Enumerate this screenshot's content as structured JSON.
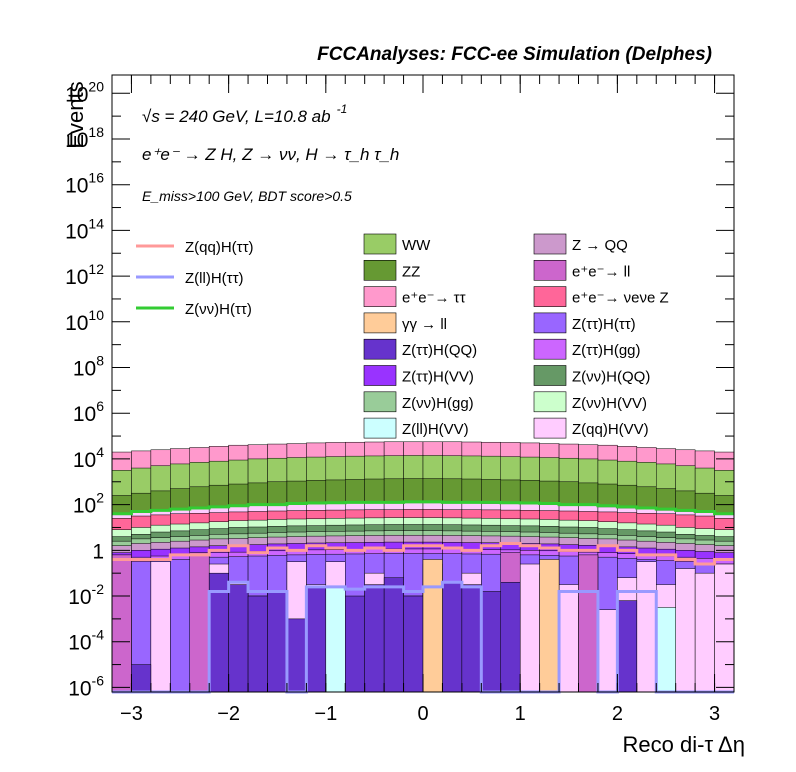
{
  "chart_data": {
    "type": "bar",
    "title": "FCCAnalyses: FCC-ee Simulation (Delphes)",
    "xlabel": "Reco di-τ Δη",
    "ylabel": "Events",
    "xlim": [
      -3.2,
      3.2
    ],
    "ylim_log10": [
      -6.2,
      20.8
    ],
    "log_scale_y": true,
    "n_bins": 32,
    "x_ticks": [
      "−3",
      "−2",
      "−1",
      "0",
      "1",
      "2",
      "3"
    ],
    "x_tick_values": [
      -3,
      -2,
      -1,
      0,
      1,
      2,
      3
    ],
    "y_ticks": [
      {
        "base": "10",
        "exp": "20",
        "v": 20
      },
      {
        "base": "10",
        "exp": "18",
        "v": 18
      },
      {
        "base": "10",
        "exp": "16",
        "v": 16
      },
      {
        "base": "10",
        "exp": "14",
        "v": 14
      },
      {
        "base": "10",
        "exp": "12",
        "v": 12
      },
      {
        "base": "10",
        "exp": "10",
        "v": 10
      },
      {
        "base": "10",
        "exp": "8",
        "v": 8
      },
      {
        "base": "10",
        "exp": "6",
        "v": 6
      },
      {
        "base": "10",
        "exp": "4",
        "v": 4
      },
      {
        "base": "10",
        "exp": "2",
        "v": 2
      },
      {
        "base": "1",
        "exp": "",
        "v": 0
      },
      {
        "base": "10",
        "exp": "-2",
        "v": -2
      },
      {
        "base": "10",
        "exp": "-4",
        "v": -4
      },
      {
        "base": "10",
        "exp": "-6",
        "v": -6
      }
    ],
    "annotations": {
      "line1": "√s = 240 GeV, L=10.8 ab",
      "line1_sup": "-1",
      "line2": "e⁺e⁻ → Z H, Z → νν, H → τ_h τ_h",
      "line3": "E_miss>100 GeV, BDT score>0.5"
    },
    "stack_layers_log10": [
      {
        "name": "e⁺e⁻→ ττ",
        "color": "#ff99cc",
        "values": [
          4.3,
          4.35,
          4.4,
          4.45,
          4.5,
          4.55,
          4.6,
          4.62,
          4.65,
          4.67,
          4.7,
          4.72,
          4.73,
          4.74,
          4.75,
          4.75,
          4.75,
          4.75,
          4.74,
          4.73,
          4.72,
          4.7,
          4.67,
          4.65,
          4.62,
          4.6,
          4.55,
          4.5,
          4.45,
          4.4,
          4.35,
          4.3
        ]
      },
      {
        "name": "WW",
        "color": "#99cc66",
        "values": [
          3.5,
          3.6,
          3.7,
          3.78,
          3.85,
          3.9,
          3.95,
          4.0,
          4.03,
          4.06,
          4.08,
          4.1,
          4.12,
          4.13,
          4.14,
          4.15,
          4.15,
          4.14,
          4.13,
          4.12,
          4.1,
          4.08,
          4.06,
          4.03,
          4.0,
          3.95,
          3.9,
          3.85,
          3.78,
          3.7,
          3.6,
          3.5
        ]
      },
      {
        "name": "ZZ",
        "color": "#669933",
        "values": [
          2.4,
          2.5,
          2.6,
          2.7,
          2.78,
          2.85,
          2.9,
          2.95,
          3.0,
          3.03,
          3.06,
          3.08,
          3.1,
          3.12,
          3.13,
          3.14,
          3.14,
          3.13,
          3.12,
          3.1,
          3.08,
          3.06,
          3.03,
          3.0,
          2.95,
          2.9,
          2.85,
          2.78,
          2.7,
          2.6,
          2.5,
          2.4
        ]
      },
      {
        "name": "Z(qq)H(VV)",
        "color": "#ffccff",
        "values": [
          1.6,
          1.7,
          1.75,
          1.8,
          1.85,
          1.9,
          1.95,
          1.98,
          2.0,
          2.02,
          2.04,
          2.05,
          2.06,
          2.07,
          2.08,
          2.08,
          2.08,
          2.07,
          2.06,
          2.05,
          2.04,
          2.02,
          2.0,
          1.98,
          1.95,
          1.9,
          1.85,
          1.8,
          1.75,
          1.7,
          1.65,
          1.6
        ]
      },
      {
        "name": "e⁺e⁻→ νeνe Z",
        "color": "#ff6699",
        "values": [
          1.4,
          1.5,
          1.55,
          1.6,
          1.62,
          1.65,
          1.68,
          1.7,
          1.72,
          1.74,
          1.75,
          1.76,
          1.77,
          1.78,
          1.78,
          1.79,
          1.79,
          1.78,
          1.78,
          1.77,
          1.76,
          1.75,
          1.74,
          1.72,
          1.7,
          1.68,
          1.65,
          1.62,
          1.6,
          1.55,
          1.5,
          1.4
        ]
      },
      {
        "name": "Z(νν)H(VV)",
        "color": "#ccffcc",
        "values": [
          0.9,
          1.0,
          1.1,
          1.15,
          1.2,
          1.25,
          1.3,
          1.32,
          1.35,
          1.37,
          1.38,
          1.4,
          1.41,
          1.42,
          1.43,
          1.43,
          1.43,
          1.42,
          1.41,
          1.4,
          1.38,
          1.37,
          1.35,
          1.32,
          1.3,
          1.25,
          1.2,
          1.15,
          1.1,
          1.0,
          0.95,
          0.9
        ]
      },
      {
        "name": "Z(νν)H(QQ)",
        "color": "#669966",
        "values": [
          0.6,
          0.7,
          0.8,
          0.85,
          0.9,
          0.95,
          1.0,
          1.02,
          1.05,
          1.07,
          1.08,
          1.1,
          1.11,
          1.12,
          1.13,
          1.13,
          1.13,
          1.12,
          1.11,
          1.1,
          1.08,
          1.07,
          1.05,
          1.02,
          1.0,
          0.95,
          0.9,
          0.85,
          0.8,
          0.7,
          0.65,
          0.6
        ]
      },
      {
        "name": "Z(νν)H(gg)",
        "color": "#99cc99",
        "values": [
          0.4,
          0.5,
          0.55,
          0.6,
          0.65,
          0.7,
          0.72,
          0.75,
          0.78,
          0.8,
          0.82,
          0.83,
          0.84,
          0.85,
          0.86,
          0.86,
          0.86,
          0.85,
          0.84,
          0.83,
          0.82,
          0.8,
          0.78,
          0.75,
          0.72,
          0.7,
          0.65,
          0.6,
          0.55,
          0.5,
          0.45,
          0.4
        ]
      },
      {
        "name": "Z → QQ",
        "color": "#cc99cc",
        "values": [
          0.2,
          0.3,
          0.35,
          0.4,
          0.45,
          0.5,
          0.52,
          0.55,
          0.58,
          0.6,
          0.62,
          0.63,
          0.64,
          0.65,
          0.66,
          0.66,
          0.66,
          0.65,
          0.64,
          0.63,
          0.62,
          0.6,
          0.58,
          0.55,
          0.52,
          0.5,
          0.45,
          0.4,
          0.35,
          0.3,
          0.25,
          0.2
        ]
      },
      {
        "name": "Z(ττ)H(VV)",
        "color": "#9933ff",
        "values": [
          -0.1,
          0.0,
          0.05,
          0.1,
          0.15,
          0.2,
          0.22,
          0.25,
          0.28,
          0.3,
          0.32,
          0.33,
          0.34,
          0.35,
          0.36,
          0.36,
          0.36,
          0.35,
          0.34,
          0.33,
          0.32,
          0.3,
          0.28,
          0.25,
          0.22,
          0.2,
          0.15,
          0.1,
          0.05,
          0.0,
          -0.05,
          -0.1
        ]
      },
      {
        "name": "Z(ττ)H(gg)",
        "color": "#cc66ff",
        "values": [
          -0.4,
          -0.3,
          -0.25,
          -0.2,
          -0.15,
          -0.1,
          -0.08,
          -0.05,
          -0.02,
          0.0,
          0.02,
          0.03,
          0.04,
          0.05,
          0.06,
          0.06,
          0.06,
          0.05,
          0.04,
          0.03,
          0.02,
          0.0,
          -0.02,
          -0.05,
          -0.08,
          -0.1,
          -0.15,
          -0.2,
          -0.25,
          -0.3,
          -0.35,
          -0.4
        ]
      },
      {
        "name": "Z(ττ)H(ττ)",
        "color": "#9966ff",
        "values": [
          -0.6,
          -0.5,
          -0.45,
          -0.4,
          -0.35,
          -0.3,
          -0.28,
          -0.25,
          -0.22,
          -0.2,
          -0.18,
          -0.17,
          -0.16,
          -0.15,
          -0.14,
          -0.14,
          -0.14,
          -0.15,
          -0.16,
          -0.17,
          -0.18,
          -0.2,
          -0.22,
          -0.25,
          -0.28,
          -0.3,
          -0.35,
          -0.4,
          -0.45,
          -0.5,
          -0.55,
          -0.6
        ]
      }
    ],
    "individual_bars_log10": [
      {
        "name": "Z(qq)H(VV)",
        "color": "#ffccff",
        "values": [
          -0.6,
          -6.2,
          -0.5,
          -6.2,
          -0.5,
          -0.6,
          -1.4,
          -2.0,
          -2.5,
          -0.5,
          -1.5,
          -0.5,
          -2.5,
          -1.0,
          -1.5,
          -2.0,
          -0.6,
          -1.8,
          -1.0,
          -2.5,
          -1.5,
          -0.6,
          -1.0,
          -1.5,
          -2.0,
          -2.6,
          -1.2,
          -0.5,
          -1.5,
          -0.8,
          -1.0,
          -0.6
        ]
      },
      {
        "name": "e⁺e⁻→ ll",
        "color": "#cc66cc",
        "values": [
          -0.2,
          -6.2,
          -6.2,
          -6.2,
          -0.1,
          -6.2,
          -6.2,
          -6.2,
          -6.2,
          -6.2,
          -6.2,
          -6.2,
          -6.2,
          -6.2,
          -6.2,
          -6.2,
          -6.2,
          -6.2,
          -6.2,
          -6.2,
          -0.1,
          -6.2,
          -6.2,
          -6.2,
          -0.2,
          -6.2,
          -6.2,
          -6.2,
          -6.2,
          -6.2,
          -6.2,
          -6.2
        ]
      },
      {
        "name": "Z(ττ)H(QQ)",
        "color": "#6633cc",
        "values": [
          -6.2,
          -5.0,
          -6.2,
          -6.2,
          -6.2,
          -1.0,
          -1.5,
          -2.0,
          -1.8,
          -3.0,
          -1.6,
          -1.8,
          -2.0,
          -1.5,
          -1.2,
          -2.0,
          -6.2,
          -1.4,
          -1.5,
          -1.8,
          -1.4,
          -6.2,
          -5.0,
          -6.2,
          -6.2,
          -6.2,
          -2.2,
          -6.2,
          -6.2,
          -6.2,
          -6.2,
          -6.2
        ]
      },
      {
        "name": "Z(ll)H(VV)",
        "color": "#ccffff",
        "values": [
          -6.2,
          -6.2,
          -6.2,
          -6.2,
          -6.2,
          -6.2,
          -6.2,
          -6.2,
          -6.2,
          -6.2,
          -6.2,
          -1.6,
          -6.2,
          -6.2,
          -6.2,
          -6.2,
          -6.2,
          -6.2,
          -6.2,
          -6.2,
          -6.2,
          -6.2,
          -6.2,
          -6.2,
          -6.2,
          -6.2,
          -6.2,
          -6.2,
          -2.5,
          -6.2,
          -6.2,
          -6.2
        ]
      },
      {
        "name": "γγ → ll",
        "color": "#ffcc99",
        "values": [
          -6.2,
          -6.2,
          -6.2,
          -6.2,
          -6.2,
          -6.2,
          -6.2,
          -6.2,
          -6.2,
          -6.2,
          -6.2,
          -6.2,
          -6.2,
          -6.2,
          -6.2,
          -6.2,
          -0.4,
          -6.2,
          -6.2,
          -6.2,
          -6.2,
          -6.2,
          -0.4,
          -6.2,
          -6.2,
          -6.2,
          -6.2,
          -6.2,
          -6.2,
          -6.2,
          -6.2,
          -6.2
        ]
      }
    ],
    "signal_lines_log10": [
      {
        "name": "Z(qq)H(ττ)",
        "color": "#ff9999",
        "values": [
          -0.4,
          -0.4,
          -0.4,
          -0.2,
          -0.2,
          0.0,
          0.2,
          -0.1,
          0.1,
          0.0,
          0.2,
          0.1,
          0.0,
          0.1,
          0.0,
          0.2,
          0.2,
          0.1,
          0.0,
          0.2,
          0.3,
          0.2,
          0.1,
          0.0,
          0.0,
          0.2,
          0.0,
          -0.2,
          -0.2,
          -0.4,
          -0.6,
          -0.4
        ]
      },
      {
        "name": "Z(ll)H(ττ)",
        "color": "#9999ff",
        "values": [
          -6.2,
          -6.2,
          -6.2,
          -6.2,
          -6.2,
          -1.8,
          -1.4,
          -1.8,
          -1.8,
          -6.2,
          -1.6,
          -1.6,
          -1.7,
          -1.6,
          -1.6,
          -1.8,
          -1.6,
          -1.4,
          -1.6,
          -6.2,
          -6.2,
          -6.2,
          -6.2,
          -1.8,
          -1.8,
          -6.2,
          -1.8,
          -1.8,
          -6.2,
          -6.2,
          -6.2,
          -6.2
        ]
      },
      {
        "name": "Z(νν)H(ττ)",
        "color": "#33cc33",
        "values": [
          1.6,
          1.7,
          1.75,
          1.8,
          1.85,
          1.9,
          1.95,
          2.0,
          2.0,
          2.05,
          2.07,
          2.08,
          2.1,
          2.1,
          2.1,
          2.12,
          2.12,
          2.1,
          2.1,
          2.1,
          2.08,
          2.07,
          2.05,
          2.0,
          2.0,
          1.95,
          1.9,
          1.85,
          1.8,
          1.75,
          1.7,
          1.6
        ]
      }
    ],
    "legend": {
      "lines": [
        {
          "label": "Z(qq)H(ττ)",
          "color": "#ff9999"
        },
        {
          "label": "Z(ll)H(ττ)",
          "color": "#9999ff"
        },
        {
          "label": "Z(νν)H(ττ)",
          "color": "#33cc33"
        }
      ],
      "boxes_col1": [
        {
          "label": "WW",
          "color": "#99cc66"
        },
        {
          "label": "ZZ",
          "color": "#669933"
        },
        {
          "label": "e⁺e⁻→ ττ",
          "color": "#ff99cc"
        },
        {
          "label": "γγ → ll",
          "color": "#ffcc99"
        },
        {
          "label": "Z(ττ)H(QQ)",
          "color": "#6633cc"
        },
        {
          "label": "Z(ττ)H(VV)",
          "color": "#9933ff"
        },
        {
          "label": "Z(νν)H(gg)",
          "color": "#99cc99"
        },
        {
          "label": "Z(ll)H(VV)",
          "color": "#ccffff"
        }
      ],
      "boxes_col2": [
        {
          "label": "Z → QQ",
          "color": "#cc99cc"
        },
        {
          "label": "e⁺e⁻→ ll",
          "color": "#cc66cc"
        },
        {
          "label": "e⁺e⁻→ νeνe Z",
          "color": "#ff6699"
        },
        {
          "label": "Z(ττ)H(ττ)",
          "color": "#9966ff"
        },
        {
          "label": "Z(ττ)H(gg)",
          "color": "#cc66ff"
        },
        {
          "label": "Z(νν)H(QQ)",
          "color": "#669966"
        },
        {
          "label": "Z(νν)H(VV)",
          "color": "#ccffcc"
        },
        {
          "label": "Z(qq)H(VV)",
          "color": "#ffccff"
        }
      ]
    }
  }
}
